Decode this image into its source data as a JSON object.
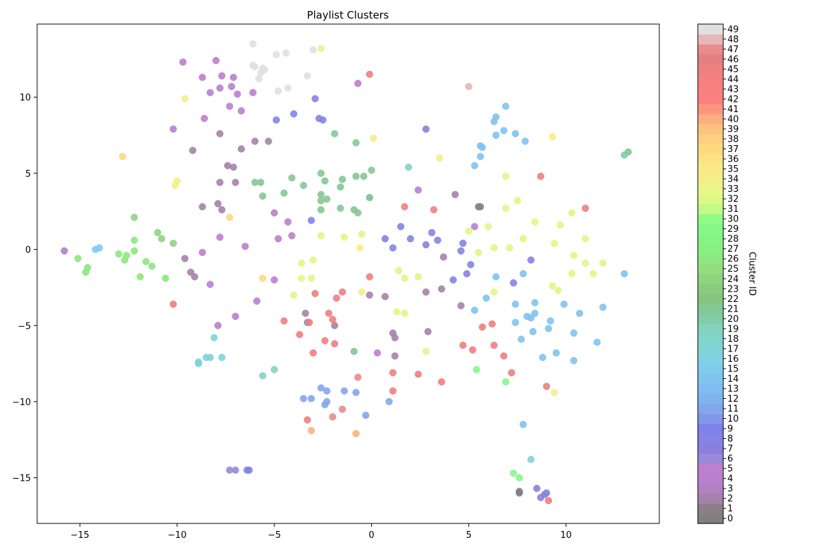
{
  "chart_data": {
    "type": "scatter",
    "title": "Playlist Clusters",
    "xlabel": "",
    "ylabel": "",
    "xlim": [
      -17.2,
      14.8
    ],
    "ylim": [
      -18.0,
      14.8
    ],
    "x_ticks": [
      -15,
      -10,
      -5,
      0,
      5,
      10
    ],
    "y_ticks": [
      -15,
      -10,
      -5,
      0,
      5,
      10
    ],
    "x_tick_labels": [
      "−15",
      "−10",
      "−5",
      "0",
      "5",
      "10"
    ],
    "y_tick_labels": [
      "−15",
      "−10",
      "−5",
      "0",
      "5",
      "10"
    ],
    "grid": false,
    "colorbar": {
      "label": "Cluster ID",
      "min": 0,
      "max": 49,
      "ticks": [
        0,
        1,
        2,
        3,
        4,
        5,
        6,
        7,
        8,
        9,
        10,
        11,
        12,
        13,
        14,
        15,
        16,
        17,
        18,
        19,
        20,
        21,
        22,
        23,
        24,
        25,
        26,
        27,
        28,
        29,
        30,
        31,
        32,
        33,
        34,
        35,
        36,
        37,
        38,
        39,
        40,
        41,
        42,
        43,
        44,
        45,
        46,
        47,
        48,
        49
      ],
      "colors": [
        "#808080",
        "#8e7e88",
        "#a583a8",
        "#b281c2",
        "#bb80cd",
        "#bd80cf",
        "#9b88d8",
        "#8b7fdc",
        "#8484e5",
        "#7f81ea",
        "#8297ea",
        "#84a6ed",
        "#7fb4ec",
        "#7fbdef",
        "#81c3ef",
        "#80cbee",
        "#80d2e3",
        "#80d4d7",
        "#80d4cc",
        "#84d3c0",
        "#81cda8",
        "#86c796",
        "#87c383",
        "#8acb80",
        "#8fd47f",
        "#93dd80",
        "#8ee780",
        "#88f082",
        "#86f387",
        "#86f889",
        "#90fb85",
        "#c2f987",
        "#dcf985",
        "#eaf789",
        "#f3ee89",
        "#f8ea87",
        "#fde382",
        "#fdd980",
        "#fdd07f",
        "#fdc27f",
        "#fdb07f",
        "#fd9680",
        "#fd8080",
        "#f98080",
        "#f48080",
        "#ee8080",
        "#e48080",
        "#e88c8c",
        "#e7b7b7",
        "#e0e0e0"
      ]
    },
    "series": [
      {
        "x": [
          -8.7,
          -8.6,
          -8.3,
          -7.8,
          -7.7,
          -7.2,
          -7.1,
          -6.9,
          -6.7,
          -7.3,
          -6.1,
          -9.7,
          -8.0,
          -10.2,
          -5.0,
          -4.3,
          -4.8,
          -4.1,
          -6.5,
          -5.9,
          -8.7,
          -7.8,
          -8.3,
          -5.0,
          -7.0,
          0.3,
          2.4,
          5.3,
          -0.7,
          -7.9
        ],
        "y": [
          11.3,
          8.6,
          10.3,
          10.6,
          11.4,
          10.7,
          11.3,
          10.2,
          9.1,
          9.4,
          10.3,
          12.3,
          12.4,
          7.9,
          2.4,
          1.8,
          0.7,
          0.9,
          0.2,
          -3.4,
          -0.2,
          0.8,
          -2.3,
          -2.0,
          -4.4,
          -6.8,
          3.9,
          1.5,
          10.9,
          -5.0
        ],
        "c": [
          4,
          4,
          4,
          4,
          4,
          4,
          4,
          4,
          4,
          4,
          4,
          4,
          4,
          4,
          4,
          4,
          4,
          4,
          4,
          4,
          4,
          4,
          4,
          4,
          4,
          4,
          4,
          4,
          4,
          4
        ]
      },
      {
        "x": [
          -9.2,
          -7.8,
          -7.4,
          -7.1,
          -7.0,
          -6.7,
          -6.0,
          -5.3,
          -7.8,
          -8.7,
          -7.9,
          -7.7,
          -9.6,
          -9.3,
          -9.1,
          -3.4,
          -3.3,
          -1.9,
          3.7,
          3.6,
          4.6,
          4.3,
          1.1,
          1.2,
          0.7,
          -0.1,
          1.2,
          2.8,
          2.9
        ],
        "y": [
          6.5,
          7.6,
          5.5,
          5.4,
          4.4,
          6.6,
          7.1,
          7.1,
          4.4,
          2.8,
          3.0,
          2.6,
          -0.6,
          -1.5,
          -1.8,
          -4.2,
          -4.8,
          -5.0,
          -0.5,
          -2.6,
          -3.7,
          3.6,
          -5.5,
          -7.0,
          -3.1,
          -3.0,
          -5.8,
          -2.8,
          -5.4
        ],
        "c": [
          2,
          2,
          2,
          2,
          2,
          2,
          2,
          2,
          2,
          2,
          2,
          2,
          2,
          2,
          2,
          2,
          2,
          2,
          2,
          2,
          2,
          2,
          2,
          2,
          2,
          2,
          2,
          2,
          2
        ]
      },
      {
        "x": [
          -2.9,
          -2.7,
          -2.5,
          -4.9,
          -4.0,
          2.8,
          -3.1,
          -7.3,
          -7.0,
          -6.4,
          -6.3,
          8.5,
          8.9,
          8.7,
          9.0,
          5.5,
          5.6,
          2.0,
          3.1,
          3.4,
          2.8,
          4.6,
          4.9,
          5.1,
          4.7,
          4.2,
          7.3,
          8.2,
          1.1,
          0.7,
          1.5
        ],
        "y": [
          9.9,
          8.6,
          8.5,
          8.5,
          8.9,
          7.9,
          1.9,
          -14.5,
          -14.5,
          -14.5,
          -14.5,
          -15.7,
          -16.1,
          -16.3,
          -16.0,
          2.8,
          2.8,
          0.7,
          1.1,
          0.6,
          0.3,
          -0.1,
          -1.6,
          -1.0,
          0.4,
          -2.0,
          -2.2,
          -0.7,
          0.1,
          0.7,
          1.5
        ],
        "c": [
          8,
          8,
          8,
          8,
          8,
          7,
          8,
          6,
          6,
          9,
          9,
          7,
          8,
          8,
          8,
          1,
          1,
          8,
          8,
          8,
          8,
          8,
          8,
          8,
          8,
          8,
          8,
          8,
          8,
          8,
          8
        ]
      },
      {
        "x": [
          -2.6,
          -2.3,
          -2.3,
          -1.4,
          -0.8,
          -0.3,
          -3.5,
          -3.1,
          0.9,
          -2.4
        ],
        "y": [
          -9.1,
          -9.3,
          -10.0,
          -9.3,
          -9.4,
          -10.9,
          -9.8,
          -9.8,
          -10.0,
          -10.2
        ],
        "c": [
          11,
          11,
          11,
          11,
          11,
          11,
          11,
          11,
          11,
          11
        ]
      },
      {
        "x": [
          6.9,
          6.3,
          6.4,
          6.8,
          7.4,
          7.9,
          5.6,
          5.7,
          5.3,
          5.6,
          6.4,
          5.9,
          7.4,
          7.8,
          6.4,
          7.4,
          8.4,
          8.2,
          8.0,
          8.3,
          9.9,
          8.4,
          7.7,
          8.8,
          9.1,
          9.2,
          9.5,
          10.4,
          10.7,
          10.4,
          11.6,
          11.9,
          13.0,
          7.8,
          -14.0,
          -14.2,
          5.3
        ],
        "y": [
          9.4,
          8.4,
          8.7,
          7.8,
          7.6,
          7.1,
          6.8,
          6.7,
          5.5,
          6.1,
          7.5,
          -3.2,
          -3.6,
          -1.6,
          -1.8,
          -4.8,
          -4.2,
          -4.5,
          -4.4,
          -5.4,
          -3.6,
          -3.5,
          -5.9,
          -7.1,
          -5.2,
          -4.7,
          -6.8,
          -5.5,
          -4.2,
          -7.3,
          -6.1,
          -3.8,
          -1.6,
          -11.5,
          0.1,
          0.0,
          -4.0
        ],
        "c": [
          14,
          14,
          14,
          14,
          14,
          14,
          14,
          14,
          14,
          14,
          14,
          14,
          14,
          14,
          14,
          14,
          14,
          14,
          14,
          14,
          14,
          14,
          14,
          14,
          14,
          14,
          14,
          14,
          14,
          14,
          14,
          14,
          14,
          14,
          15,
          15,
          14
        ]
      },
      {
        "x": [
          -8.1,
          -8.5,
          -8.9,
          -8.9,
          -8.3,
          -7.7,
          8.2
        ],
        "y": [
          -5.8,
          -7.1,
          -7.4,
          -7.5,
          -7.1,
          -7.1,
          -13.8
        ],
        "c": [
          17,
          17,
          17,
          17,
          17,
          17,
          17
        ]
      },
      {
        "x": [
          -1.9,
          -0.8,
          -5.7,
          -5.6,
          -4.5,
          -4.1,
          -3.5,
          -2.6,
          -2.6,
          -2.4,
          -2.3,
          -2.6,
          -1.6,
          -1.6,
          -1.5,
          -0.9,
          -0.8,
          -0.4,
          -0.7,
          -0.1,
          -0.1,
          0.0,
          -6.0,
          -0.9,
          1.9,
          -5.6,
          -5.0,
          -2.6,
          13.2,
          13.0
        ],
        "y": [
          7.6,
          7.0,
          4.4,
          3.5,
          3.7,
          4.7,
          4.2,
          5.0,
          3.6,
          4.5,
          3.3,
          2.6,
          2.7,
          4.1,
          4.6,
          2.6,
          4.8,
          4.8,
          2.4,
          3.4,
          3.4,
          5.2,
          4.4,
          -6.7,
          5.4,
          -8.3,
          -7.9,
          3.2,
          6.4,
          6.2
        ],
        "c": [
          21,
          21,
          21,
          21,
          21,
          21,
          21,
          21,
          21,
          21,
          21,
          21,
          21,
          21,
          21,
          21,
          21,
          21,
          21,
          21,
          21,
          21,
          21,
          21,
          19,
          19,
          19,
          21,
          21,
          20
        ]
      },
      {
        "x": [
          -12.2,
          -11.0,
          -10.8,
          -10.2,
          -12.2,
          -12.2,
          -13.0,
          -12.7,
          -12.6,
          -11.6,
          -11.3,
          -11.9,
          -10.6,
          -15.1,
          -14.6,
          -14.7
        ],
        "y": [
          2.1,
          1.1,
          0.7,
          0.4,
          0.6,
          -0.1,
          -0.3,
          -0.7,
          -0.4,
          -0.8,
          -1.1,
          -1.8,
          -1.9,
          -0.6,
          -1.2,
          -1.5
        ],
        "c": [
          24,
          24,
          24,
          24,
          26,
          26,
          26,
          26,
          26,
          26,
          26,
          26,
          26,
          26,
          26,
          26
        ]
      },
      {
        "x": [
          5.4,
          7.3,
          7.6,
          6.9
        ],
        "y": [
          -7.9,
          -14.7,
          -15.0,
          -8.7
        ],
        "c": [
          29,
          29,
          29,
          29
        ]
      },
      {
        "x": [
          6.9,
          7.5,
          6.9,
          6.0,
          6.3,
          7.1,
          7.8,
          8.4,
          9.4,
          9.7,
          10.3,
          11.0,
          10.4,
          10.3,
          11.0,
          11.4,
          11.9,
          9.3,
          9.6,
          6.3,
          5.0,
          5.5,
          1.4,
          1.7,
          2.4,
          -1.4,
          -0.5,
          -4.0,
          -3.6,
          -3.6,
          -3.0,
          -2.6,
          -3.1,
          1.3,
          1.7,
          2.8
        ],
        "y": [
          4.8,
          3.2,
          2.7,
          1.5,
          0.1,
          0.1,
          0.7,
          1.8,
          0.4,
          1.6,
          2.4,
          0.7,
          -0.4,
          -1.6,
          -0.9,
          -1.6,
          -0.9,
          -2.4,
          -2.7,
          -2.8,
          1.2,
          -0.2,
          -1.4,
          -1.9,
          -1.8,
          0.8,
          1.0,
          -3.0,
          -0.9,
          -1.9,
          -0.7,
          0.9,
          -1.9,
          -4.1,
          -4.2,
          -6.7
        ],
        "c": [
          32,
          32,
          32,
          32,
          32,
          32,
          32,
          32,
          32,
          32,
          32,
          32,
          32,
          32,
          32,
          32,
          32,
          32,
          32,
          32,
          32,
          32,
          32,
          32,
          32,
          32,
          32,
          32,
          32,
          32,
          32,
          32,
          32,
          32,
          32,
          32
        ]
      },
      {
        "x": [
          -9.6,
          -10.1,
          -10.0,
          -2.6,
          3.5,
          0.1,
          -0.6,
          -0.5,
          9.3,
          9.4
        ],
        "y": [
          9.9,
          4.2,
          4.5,
          13.2,
          6.0,
          7.3,
          0.1,
          -2.8,
          7.4,
          -9.4
        ],
        "c": [
          34,
          34,
          34,
          34,
          34,
          34,
          34,
          34,
          34,
          34
        ]
      },
      {
        "x": [
          -12.8,
          -7.3,
          -5.6
        ],
        "y": [
          6.1,
          2.1,
          -1.9
        ],
        "c": [
          37,
          37,
          37
        ]
      },
      {
        "x": [
          -3.1,
          -0.8
        ],
        "y": [
          -11.9,
          -12.1
        ],
        "c": [
          40,
          40
        ]
      },
      {
        "x": [
          -10.2,
          -4.5,
          -3.7,
          -3.2,
          -3.0,
          -2.9,
          -2.2,
          -2.4,
          -2.0,
          -1.9,
          -1.8,
          -1.5,
          1.7,
          3.2,
          -0.1,
          1.1,
          1.1,
          2.4,
          3.6,
          4.7,
          5.2,
          5.7,
          6.2,
          6.3,
          6.8,
          7.2,
          8.7,
          9.0,
          11.0,
          9.1,
          -0.1,
          -3.3
        ],
        "y": [
          -3.6,
          -4.7,
          -5.6,
          -4.8,
          -6.8,
          -2.9,
          -4.2,
          -6.0,
          -4.6,
          -6.2,
          -3.2,
          -2.8,
          2.8,
          2.6,
          -1.8,
          -8.1,
          -9.3,
          -8.2,
          -8.7,
          -6.3,
          -6.6,
          -5.1,
          -4.9,
          -6.3,
          -7.0,
          -8.1,
          4.8,
          -9.0,
          2.7,
          -16.5,
          11.5,
          -11.2
        ],
        "c": [
          45,
          45,
          45,
          45,
          45,
          45,
          45,
          45,
          45,
          45,
          45,
          45,
          45,
          45,
          45,
          45,
          45,
          45,
          45,
          45,
          45,
          45,
          45,
          45,
          45,
          45,
          45,
          45,
          45,
          45,
          45,
          45
        ]
      },
      {
        "x": [
          -0.7,
          -1.5,
          -2.0,
          5.0
        ],
        "y": [
          -8.4,
          -10.5,
          -11.0,
          10.7
        ],
        "c": [
          47,
          47,
          47,
          48
        ]
      },
      {
        "x": [
          -6.1,
          -6.1,
          -6.0,
          -5.6,
          -5.5,
          -5.7,
          -5.8,
          -4.8,
          -4.3,
          -4.9,
          -4.4,
          -3.3,
          -3.0
        ],
        "y": [
          13.5,
          12.1,
          12.0,
          11.9,
          11.8,
          11.6,
          11.2,
          10.4,
          10.6,
          12.8,
          12.9,
          11.4,
          13.1
        ],
        "c": [
          49,
          49,
          49,
          49,
          49,
          49,
          49,
          49,
          49,
          49,
          49,
          49,
          49
        ]
      },
      {
        "x": [
          7.6,
          7.6,
          -15.8
        ],
        "y": [
          -15.9,
          -16.0,
          -0.1
        ],
        "c": [
          0,
          0,
          3
        ]
      }
    ]
  }
}
